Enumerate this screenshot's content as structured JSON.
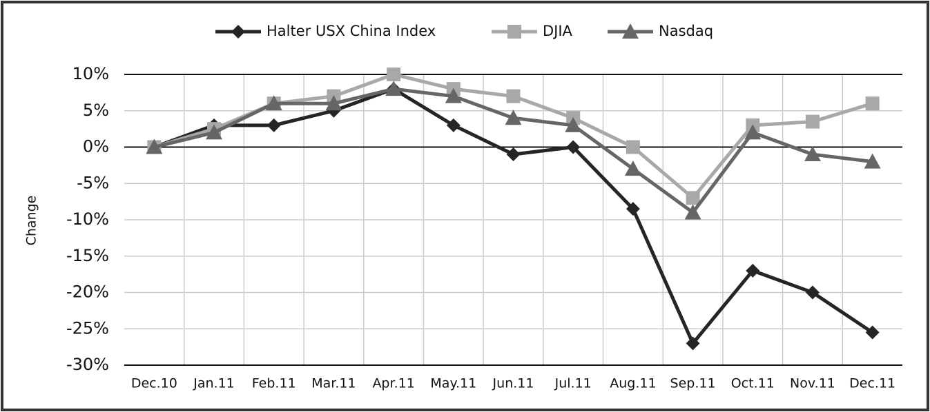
{
  "chart_data": {
    "type": "line",
    "y_label": "Change",
    "categories": [
      "Dec.10",
      "Jan.11",
      "Feb.11",
      "Mar.11",
      "Apr.11",
      "May.11",
      "Jun.11",
      "Jul.11",
      "Aug.11",
      "Sep.11",
      "Oct.11",
      "Nov.11",
      "Dec.11"
    ],
    "series": [
      {
        "name": "Halter USX China Index",
        "color": "#252525",
        "marker": "diamond",
        "values": [
          0,
          3,
          3,
          5,
          8,
          3,
          -1,
          0,
          -8.5,
          -27,
          -17,
          -20,
          -25.5
        ]
      },
      {
        "name": "DJIA",
        "color": "#a8a8a8",
        "marker": "square",
        "values": [
          0,
          2.5,
          6,
          7,
          10,
          8,
          7,
          4,
          0,
          -7,
          3,
          3.5,
          6
        ]
      },
      {
        "name": "Nasdaq",
        "color": "#666666",
        "marker": "triangle",
        "values": [
          0,
          2,
          6,
          6,
          8,
          7,
          4,
          3,
          -3,
          -9,
          2,
          -1,
          -2
        ]
      }
    ],
    "ylim": [
      -30,
      10
    ],
    "yticks": [
      {
        "value": -30,
        "label": "-30%"
      },
      {
        "value": -25,
        "label": "-25%"
      },
      {
        "value": -20,
        "label": "-20%"
      },
      {
        "value": -15,
        "label": "-15%"
      },
      {
        "value": -10,
        "label": "-10%"
      },
      {
        "value": -5,
        "label": "-5%"
      },
      {
        "value": 0,
        "label": "0%"
      },
      {
        "value": 5,
        "label": "5%"
      },
      {
        "value": 10,
        "label": "10%"
      }
    ],
    "grid": true,
    "legend": "top"
  }
}
